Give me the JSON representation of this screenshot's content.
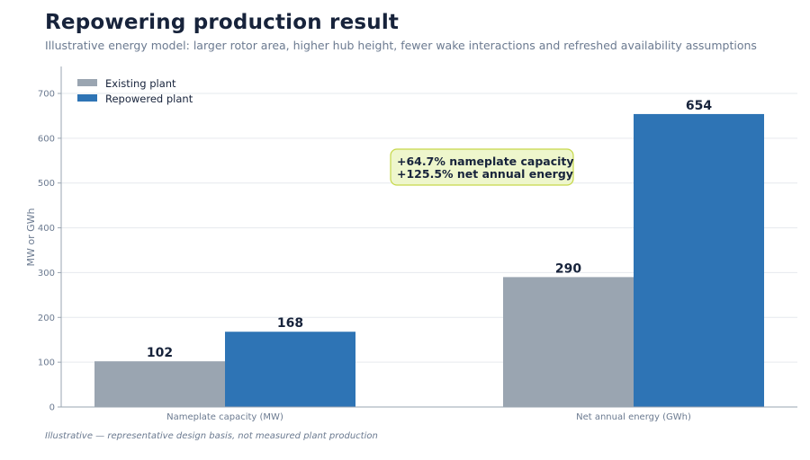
{
  "header": {
    "title": "Repowering production result",
    "subtitle": "Illustrative energy model: larger rotor area, higher hub height, fewer wake interactions and refreshed availability assumptions"
  },
  "footnote": "Illustrative — representative design basis, not measured plant production",
  "colors": {
    "existing": "#9aa5b1",
    "repowered": "#2e74b5",
    "annotation_fill": "#eef6cc",
    "annotation_border": "#c6d84a",
    "axis": "#9aa5b1",
    "grid": "#e6e9ee"
  },
  "chart_data": {
    "type": "bar",
    "categories": [
      "Nameplate capacity (MW)",
      "Net annual energy (GWh)"
    ],
    "series": [
      {
        "name": "Existing plant",
        "values": [
          102,
          290
        ]
      },
      {
        "name": "Repowered plant",
        "values": [
          168,
          654
        ]
      }
    ],
    "ylabel": "MW or GWh",
    "ylim": [
      0,
      760
    ],
    "yticks": [
      0,
      100,
      200,
      300,
      400,
      500,
      600,
      700
    ],
    "grid": true,
    "legend": "top-left",
    "annotation": {
      "lines": [
        "+64.7% nameplate capacity",
        "+125.5% net annual energy"
      ]
    }
  }
}
